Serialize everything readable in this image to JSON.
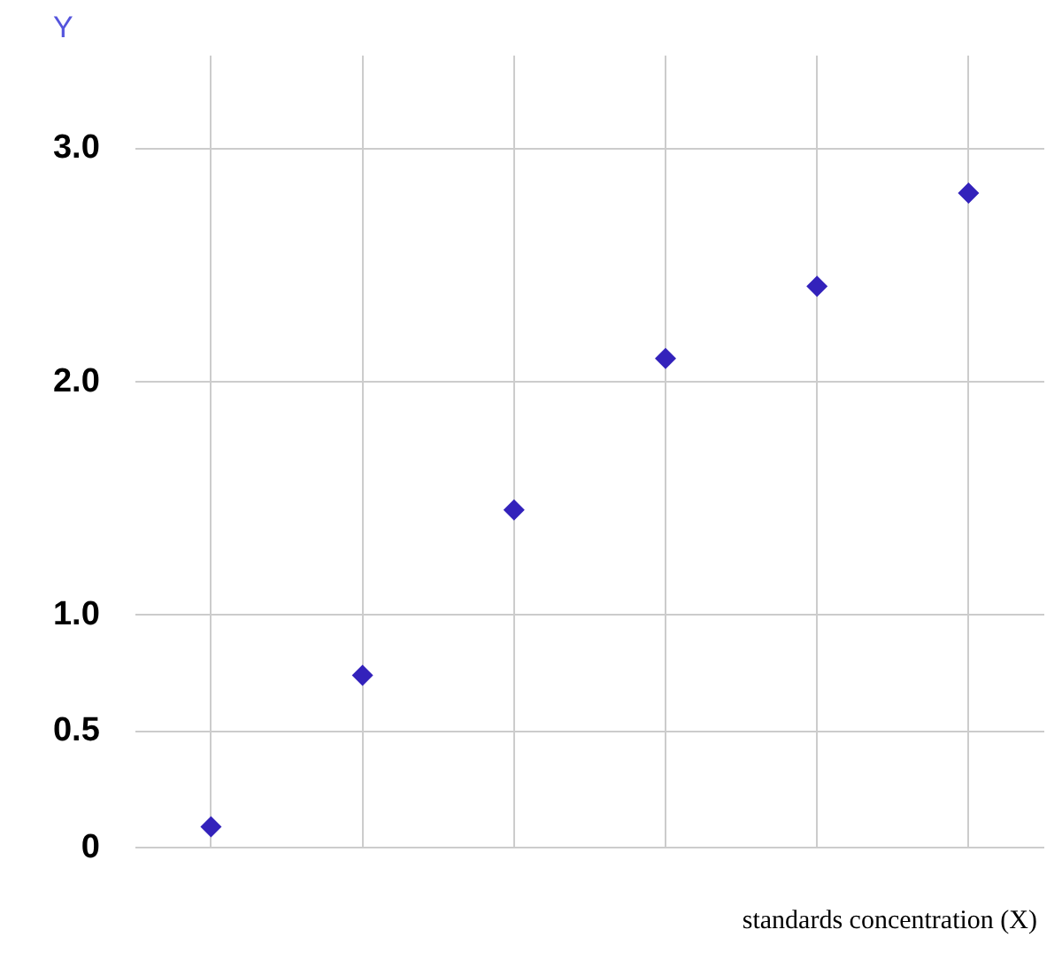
{
  "chart_data": {
    "type": "scatter",
    "ylabel": "Y",
    "xlabel": "standards concentration (X)",
    "categories": [
      null,
      null,
      null,
      null,
      null,
      null
    ],
    "series": [
      {
        "color": "#3322bb",
        "values": [
          0.09,
          0.74,
          1.45,
          2.1,
          2.41,
          2.81
        ]
      }
    ],
    "ylim": [
      0,
      3.4
    ],
    "yticks": [
      {
        "value": 0,
        "label": "0"
      },
      {
        "value": 0.5,
        "label": "0.5"
      },
      {
        "value": 1,
        "label": "1.0"
      },
      {
        "value": 2,
        "label": "2.0"
      },
      {
        "value": 3,
        "label": "3.0"
      }
    ],
    "tick_labels": "y",
    "grid": true,
    "marker": "diamond"
  }
}
